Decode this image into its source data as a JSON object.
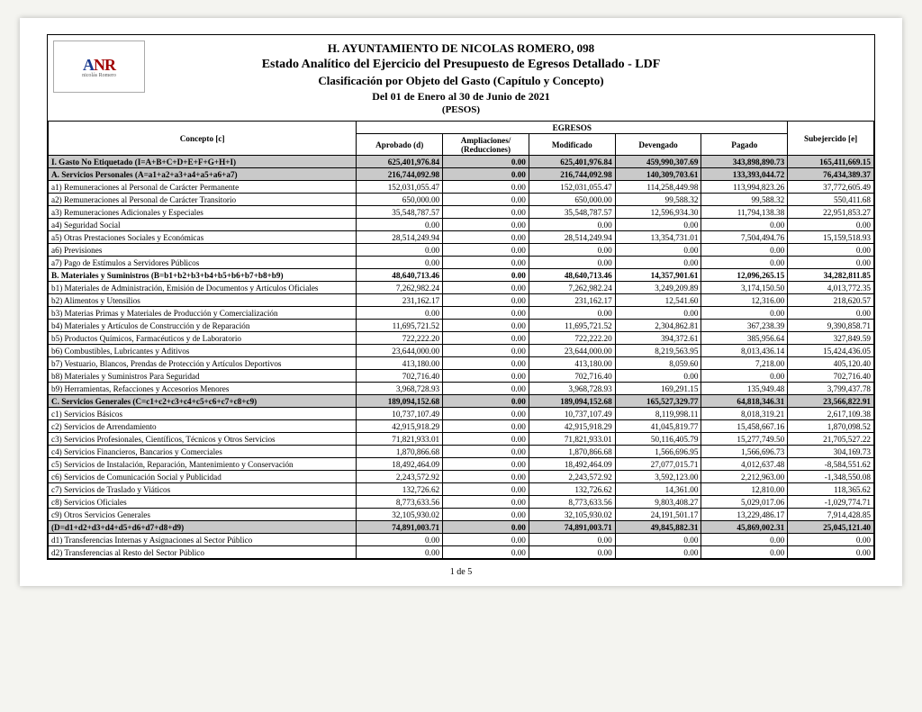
{
  "header": {
    "line1": "H. AYUNTAMIENTO DE NICOLAS ROMERO, 098",
    "line2": "Estado Analítico del Ejercicio del Presupuesto de Egresos Detallado - LDF",
    "line3": "Clasificación por Objeto del Gasto (Capítulo y Concepto)",
    "line4": "Del 01 de Enero al 30 de Junio de 2021",
    "line5": "(PESOS)",
    "logo_big_a": "A",
    "logo_big_nr": "NR",
    "logo_small": "nicolás Romero"
  },
  "columns": {
    "concepto": "Concepto [c]",
    "egresos": "EGRESOS",
    "aprobado": "Aprobado (d)",
    "ampliaciones": "Ampliaciones/ (Reducciones)",
    "modificado": "Modificado",
    "devengado": "Devengado",
    "pagado": "Pagado",
    "subejercido": "Subejercido [e]"
  },
  "rows": [
    {
      "kind": "section",
      "c": "I. Gasto No Etiquetado (I=A+B+C+D+E+F+G+H+I)",
      "v": [
        "625,401,976.84",
        "0.00",
        "625,401,976.84",
        "459,990,307.69",
        "343,898,890.73",
        "165,411,669.15"
      ]
    },
    {
      "kind": "section",
      "c": "A. Servicios Personales (A=a1+a2+a3+a4+a5+a6+a7)",
      "v": [
        "216,744,092.98",
        "0.00",
        "216,744,092.98",
        "140,309,703.61",
        "133,393,044.72",
        "76,434,389.37"
      ]
    },
    {
      "kind": "row",
      "c": "a1) Remuneraciones al Personal de Carácter Permanente",
      "v": [
        "152,031,055.47",
        "0.00",
        "152,031,055.47",
        "114,258,449.98",
        "113,994,823.26",
        "37,772,605.49"
      ]
    },
    {
      "kind": "row",
      "c": "a2) Remuneraciones al Personal de Carácter Transitorio",
      "v": [
        "650,000.00",
        "0.00",
        "650,000.00",
        "99,588.32",
        "99,588.32",
        "550,411.68"
      ]
    },
    {
      "kind": "row",
      "c": "a3) Remuneraciones Adicionales y Especiales",
      "v": [
        "35,548,787.57",
        "0.00",
        "35,548,787.57",
        "12,596,934.30",
        "11,794,138.38",
        "22,951,853.27"
      ]
    },
    {
      "kind": "row",
      "c": "a4) Seguridad Social",
      "v": [
        "0.00",
        "0.00",
        "0.00",
        "0.00",
        "0.00",
        "0.00"
      ]
    },
    {
      "kind": "row",
      "c": "a5) Otras Prestaciones Sociales y Económicas",
      "v": [
        "28,514,249.94",
        "0.00",
        "28,514,249.94",
        "13,354,731.01",
        "7,504,494.76",
        "15,159,518.93"
      ]
    },
    {
      "kind": "row",
      "c": "a6) Previsiones",
      "v": [
        "0.00",
        "0.00",
        "0.00",
        "0.00",
        "0.00",
        "0.00"
      ]
    },
    {
      "kind": "row",
      "c": "a7) Pago de Estímulos a Servidores Públicos",
      "v": [
        "0.00",
        "0.00",
        "0.00",
        "0.00",
        "0.00",
        "0.00"
      ]
    },
    {
      "kind": "bold",
      "c": "B. Materiales y Suministros (B=b1+b2+b3+b4+b5+b6+b7+b8+b9)",
      "v": [
        "48,640,713.46",
        "0.00",
        "48,640,713.46",
        "14,357,901.61",
        "12,096,265.15",
        "34,282,811.85"
      ]
    },
    {
      "kind": "row",
      "c": "b1) Materiales de Administración, Emisión de Documentos y Artículos Oficiales",
      "v": [
        "7,262,982.24",
        "0.00",
        "7,262,982.24",
        "3,249,209.89",
        "3,174,150.50",
        "4,013,772.35"
      ]
    },
    {
      "kind": "row",
      "c": "b2) Alimentos y Utensilios",
      "v": [
        "231,162.17",
        "0.00",
        "231,162.17",
        "12,541.60",
        "12,316.00",
        "218,620.57"
      ]
    },
    {
      "kind": "row",
      "c": "b3) Materias Primas y Materiales de Producción y Comercialización",
      "v": [
        "0.00",
        "0.00",
        "0.00",
        "0.00",
        "0.00",
        "0.00"
      ]
    },
    {
      "kind": "row",
      "c": "b4) Materiales y Artículos de Construcción y de Reparación",
      "v": [
        "11,695,721.52",
        "0.00",
        "11,695,721.52",
        "2,304,862.81",
        "367,238.39",
        "9,390,858.71"
      ]
    },
    {
      "kind": "row",
      "c": "b5) Productos Químicos, Farmacéuticos y de Laboratorio",
      "v": [
        "722,222.20",
        "0.00",
        "722,222.20",
        "394,372.61",
        "385,956.64",
        "327,849.59"
      ]
    },
    {
      "kind": "row",
      "c": "b6) Combustibles, Lubricantes y Aditivos",
      "v": [
        "23,644,000.00",
        "0.00",
        "23,644,000.00",
        "8,219,563.95",
        "8,013,436.14",
        "15,424,436.05"
      ]
    },
    {
      "kind": "row",
      "c": "b7) Vestuario, Blancos, Prendas de Protección y Artículos Deportivos",
      "v": [
        "413,180.00",
        "0.00",
        "413,180.00",
        "8,059.60",
        "7,218.00",
        "405,120.40"
      ]
    },
    {
      "kind": "row",
      "c": "b8) Materiales y Suministros Para Seguridad",
      "v": [
        "702,716.40",
        "0.00",
        "702,716.40",
        "0.00",
        "0.00",
        "702,716.40"
      ]
    },
    {
      "kind": "row",
      "c": "b9) Herramientas, Refacciones y Accesorios Menores",
      "v": [
        "3,968,728.93",
        "0.00",
        "3,968,728.93",
        "169,291.15",
        "135,949.48",
        "3,799,437.78"
      ]
    },
    {
      "kind": "section",
      "c": "C. Servicios Generales (C=c1+c2+c3+c4+c5+c6+c7+c8+c9)",
      "v": [
        "189,094,152.68",
        "0.00",
        "189,094,152.68",
        "165,527,329.77",
        "64,818,346.31",
        "23,566,822.91"
      ]
    },
    {
      "kind": "row",
      "c": "c1) Servicios Básicos",
      "v": [
        "10,737,107.49",
        "0.00",
        "10,737,107.49",
        "8,119,998.11",
        "8,018,319.21",
        "2,617,109.38"
      ]
    },
    {
      "kind": "row",
      "c": "c2) Servicios de Arrendamiento",
      "v": [
        "42,915,918.29",
        "0.00",
        "42,915,918.29",
        "41,045,819.77",
        "15,458,667.16",
        "1,870,098.52"
      ]
    },
    {
      "kind": "row",
      "c": "c3) Servicios Profesionales, Científicos, Técnicos y Otros Servicios",
      "v": [
        "71,821,933.01",
        "0.00",
        "71,821,933.01",
        "50,116,405.79",
        "15,277,749.50",
        "21,705,527.22"
      ]
    },
    {
      "kind": "row",
      "c": "c4) Servicios Financieros, Bancarios y Comerciales",
      "v": [
        "1,870,866.68",
        "0.00",
        "1,870,866.68",
        "1,566,696.95",
        "1,566,696.73",
        "304,169.73"
      ]
    },
    {
      "kind": "row",
      "c": "c5) Servicios de Instalación, Reparación, Mantenimiento y Conservación",
      "v": [
        "18,492,464.09",
        "0.00",
        "18,492,464.09",
        "27,077,015.71",
        "4,012,637.48",
        "-8,584,551.62"
      ]
    },
    {
      "kind": "row",
      "c": "c6) Servicios de Comunicación Social y Publicidad",
      "v": [
        "2,243,572.92",
        "0.00",
        "2,243,572.92",
        "3,592,123.00",
        "2,212,963.00",
        "-1,348,550.08"
      ]
    },
    {
      "kind": "row",
      "c": "c7) Servicios de Traslado y Viáticos",
      "v": [
        "132,726.62",
        "0.00",
        "132,726.62",
        "14,361.00",
        "12,810.00",
        "118,365.62"
      ]
    },
    {
      "kind": "row",
      "c": "c8) Servicios Oficiales",
      "v": [
        "8,773,633.56",
        "0.00",
        "8,773,633.56",
        "9,803,408.27",
        "5,029,017.06",
        "-1,029,774.71"
      ]
    },
    {
      "kind": "row",
      "c": "c9) Otros Servicios Generales",
      "v": [
        "32,105,930.02",
        "0.00",
        "32,105,930.02",
        "24,191,501.17",
        "13,229,486.17",
        "7,914,428.85"
      ]
    },
    {
      "kind": "section",
      "c": "(D=d1+d2+d3+d4+d5+d6+d7+d8+d9)",
      "v": [
        "74,891,003.71",
        "0.00",
        "74,891,003.71",
        "49,845,882.31",
        "45,869,002.31",
        "25,045,121.40"
      ]
    },
    {
      "kind": "row",
      "c": "d1) Transferencias Internas y Asignaciones al Sector Público",
      "v": [
        "0.00",
        "0.00",
        "0.00",
        "0.00",
        "0.00",
        "0.00"
      ]
    },
    {
      "kind": "row",
      "c": "d2) Transferencias al Resto del Sector Público",
      "v": [
        "0.00",
        "0.00",
        "0.00",
        "0.00",
        "0.00",
        "0.00"
      ]
    }
  ],
  "footer": "1 de 5"
}
